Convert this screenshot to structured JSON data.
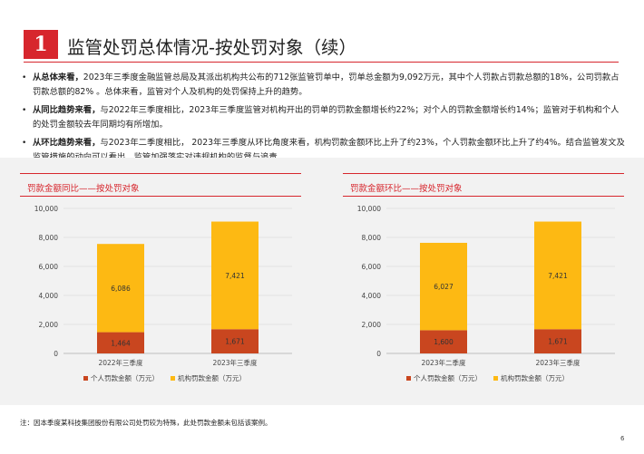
{
  "header": {
    "number": "1",
    "title": "监管处罚总体情况-按处罚对象（续）"
  },
  "bullets": [
    {
      "lead": "从总体来看，",
      "text": "2023年三季度金融监管总局及其派出机构共公布的712张监管罚单中，罚单总金额为9,092万元，其中个人罚款占罚款总额的18%，公司罚款占罚款总额的82% 。总体来看，监管对个人及机构的处罚保持上升的趋势。"
    },
    {
      "lead": "从同比趋势来看，",
      "text": "与2022年三季度相比，2023年三季度监管对机构开出的罚单的罚款金额增长约22%；对个人的罚款金额增长约14%；监管对于机构和个人的处罚金额较去年同期均有所增加。"
    },
    {
      "lead": "从环比趋势来看，",
      "text": "与2023年二季度相比，    2023年三季度从环比角度来看，机构罚款金额环比上升了约23%，个人罚款金额环比上升了约4%。结合监管发文及监管措施的动向可以看出，监管加强落实对违规机构的监督与追责。"
    }
  ],
  "chart_data": [
    {
      "type": "bar",
      "stacked": true,
      "title": "罚款金额同比——按处罚对象",
      "categories": [
        "2022年三季度",
        "2023年三季度"
      ],
      "series": [
        {
          "name": "个人罚款金额（万元）",
          "values": [
            1464,
            1671
          ]
        },
        {
          "name": "机构罚款金额（万元）",
          "values": [
            6086,
            7421
          ]
        }
      ],
      "value_labels": [
        [
          "1,464",
          "1,671"
        ],
        [
          "6,086",
          "7,421"
        ]
      ],
      "ylim": [
        0,
        10000
      ],
      "yticks": [
        0,
        2000,
        4000,
        6000,
        8000,
        10000
      ],
      "ytick_labels": [
        "0",
        "2,000",
        "4,000",
        "6,000",
        "8,000",
        "10,000"
      ],
      "legend": "bottom",
      "grid": true
    },
    {
      "type": "bar",
      "stacked": true,
      "title": "罚款金额环比——按处罚对象",
      "categories": [
        "2023年二季度",
        "2023年三季度"
      ],
      "series": [
        {
          "name": "个人罚款金额（万元）",
          "values": [
            1600,
            1671
          ]
        },
        {
          "name": "机构罚款金额（万元）",
          "values": [
            6027,
            7421
          ]
        }
      ],
      "value_labels": [
        [
          "1,600",
          "1,671"
        ],
        [
          "6,027",
          "7,421"
        ]
      ],
      "ylim": [
        0,
        10000
      ],
      "yticks": [
        0,
        2000,
        4000,
        6000,
        8000,
        10000
      ],
      "ytick_labels": [
        "0",
        "2,000",
        "4,000",
        "6,000",
        "8,000",
        "10,000"
      ],
      "legend": "bottom",
      "grid": true
    }
  ],
  "colors": {
    "accent": "#d7262d",
    "individual": "#c9461f",
    "institution": "#fdb913",
    "grid": "#e3e3e3",
    "axis": "#bfbfbf"
  },
  "note": "注：因本季度某科技集团股份有限公司处罚较为特殊，此处罚款金额未包括该案例。",
  "page_number": "6"
}
